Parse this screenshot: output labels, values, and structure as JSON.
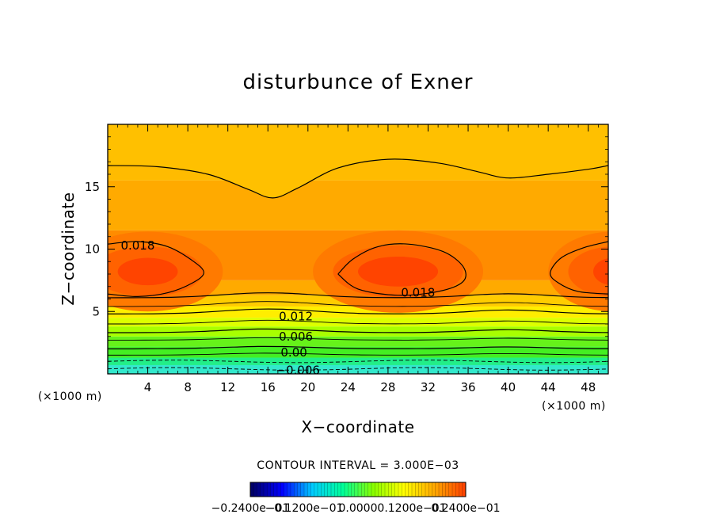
{
  "chart_data": {
    "type": "heatmap",
    "title": "disturbunce of Exner",
    "xlabel": "X−coordinate",
    "ylabel": "Z−coordinate",
    "xunit": "(×1000 m)",
    "yunit": "(×1000 m)",
    "xlim": [
      0,
      50
    ],
    "ylim": [
      0,
      20
    ],
    "xticks": [
      "4",
      "8",
      "12",
      "16",
      "20",
      "24",
      "28",
      "32",
      "36",
      "40",
      "44",
      "48"
    ],
    "yticks": [
      "5",
      "10",
      "15"
    ],
    "grid": false,
    "contour_interval_text": "CONTOUR INTERVAL = 3.000E−03",
    "contour_interval": 0.003,
    "contour_labels": [
      "0.018",
      "0.018",
      "0.012",
      "0.006",
      "0.00",
      "−0.006"
    ],
    "colorbar": {
      "orientation": "horizontal",
      "colors": [
        "#000066",
        "#0000ff",
        "#00ccff",
        "#00ff99",
        "#88ff00",
        "#ffff00",
        "#ffaa00",
        "#ff4400"
      ],
      "tick_labels": [
        "−0.2400e−01",
        "−0.1200e−01",
        "0.0000",
        "0.1200e−01",
        "0.2400e−01"
      ],
      "range": [
        -0.024,
        0.024
      ]
    },
    "palette": {
      "max": "#ff4400",
      "high": "#ff8c00",
      "mid": "#ffaa00",
      "top": "#ffd700",
      "yellow": "#ffee00",
      "lime": "#a8ff00",
      "green": "#44ee22",
      "cyan": "#22ee88",
      "aqua": "#33e8cc"
    }
  }
}
